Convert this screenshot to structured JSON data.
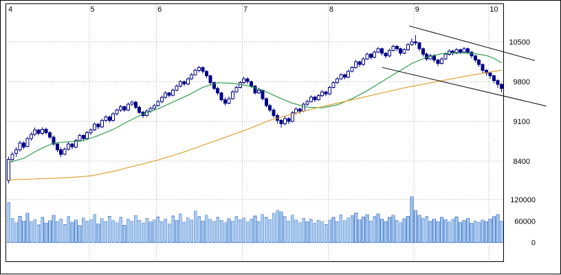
{
  "chart_data": {
    "type": "candlestick",
    "title": "",
    "legend": "none",
    "grid": "dotted",
    "x_axis": {
      "unit": "month",
      "months": [
        {
          "label": "4",
          "index": 0
        },
        {
          "label": "5",
          "index": 22
        },
        {
          "label": "6",
          "index": 40
        },
        {
          "label": "7",
          "index": 63
        },
        {
          "label": "8",
          "index": 86
        },
        {
          "label": "9",
          "index": 109
        },
        {
          "label": "10",
          "index": 129
        }
      ]
    },
    "price_axis": {
      "side": "right",
      "ticks": [
        {
          "value": 10500,
          "label": "10500"
        },
        {
          "value": 9800,
          "label": "9800"
        },
        {
          "value": 9100,
          "label": "9100"
        },
        {
          "value": 8400,
          "label": "8400"
        }
      ]
    },
    "volume_axis": {
      "side": "right",
      "ticks": [
        {
          "value": 120000,
          "label": "120000"
        },
        {
          "value": 60000,
          "label": "60000"
        },
        {
          "value": 0,
          "label": "0"
        }
      ]
    },
    "candles": [
      [
        8060,
        8480,
        8010,
        8430
      ],
      [
        8430,
        8560,
        8380,
        8520
      ],
      [
        8540,
        8650,
        8480,
        8600
      ],
      [
        8600,
        8760,
        8570,
        8720
      ],
      [
        8720,
        8750,
        8610,
        8650
      ],
      [
        8660,
        8830,
        8640,
        8800
      ],
      [
        8800,
        8910,
        8760,
        8870
      ],
      [
        8870,
        8990,
        8840,
        8950
      ],
      [
        8950,
        8970,
        8850,
        8890
      ],
      [
        8890,
        9000,
        8860,
        8960
      ],
      [
        8960,
        8990,
        8870,
        8900
      ],
      [
        8900,
        8930,
        8790,
        8820
      ],
      [
        8820,
        8850,
        8670,
        8700
      ],
      [
        8700,
        8730,
        8560,
        8600
      ],
      [
        8600,
        8640,
        8470,
        8520
      ],
      [
        8520,
        8640,
        8500,
        8610
      ],
      [
        8610,
        8730,
        8590,
        8700
      ],
      [
        8700,
        8720,
        8610,
        8650
      ],
      [
        8650,
        8790,
        8630,
        8760
      ],
      [
        8760,
        8880,
        8740,
        8850
      ],
      [
        8850,
        8870,
        8760,
        8800
      ],
      [
        8800,
        8930,
        8780,
        8900
      ],
      [
        8900,
        8980,
        8860,
        8950
      ],
      [
        8950,
        9080,
        8930,
        9050
      ],
      [
        9050,
        9070,
        8960,
        9000
      ],
      [
        9000,
        9150,
        8980,
        9120
      ],
      [
        9120,
        9210,
        9090,
        9180
      ],
      [
        9180,
        9200,
        9080,
        9120
      ],
      [
        9120,
        9260,
        9100,
        9230
      ],
      [
        9230,
        9330,
        9200,
        9300
      ],
      [
        9300,
        9390,
        9270,
        9360
      ],
      [
        9360,
        9380,
        9260,
        9300
      ],
      [
        9300,
        9430,
        9280,
        9400
      ],
      [
        9400,
        9470,
        9370,
        9440
      ],
      [
        9440,
        9460,
        9320,
        9350
      ],
      [
        9350,
        9380,
        9230,
        9260
      ],
      [
        9260,
        9290,
        9160,
        9200
      ],
      [
        9200,
        9310,
        9180,
        9280
      ],
      [
        9280,
        9360,
        9250,
        9330
      ],
      [
        9330,
        9410,
        9300,
        9380
      ],
      [
        9380,
        9480,
        9360,
        9450
      ],
      [
        9450,
        9550,
        9420,
        9520
      ],
      [
        9520,
        9630,
        9500,
        9600
      ],
      [
        9600,
        9620,
        9520,
        9560
      ],
      [
        9560,
        9680,
        9540,
        9650
      ],
      [
        9650,
        9750,
        9630,
        9720
      ],
      [
        9720,
        9830,
        9700,
        9800
      ],
      [
        9800,
        9820,
        9720,
        9760
      ],
      [
        9760,
        9880,
        9740,
        9850
      ],
      [
        9850,
        9950,
        9830,
        9920
      ],
      [
        9920,
        10030,
        9900,
        10000
      ],
      [
        10000,
        10080,
        9960,
        10050
      ],
      [
        10050,
        10070,
        9940,
        9980
      ],
      [
        9980,
        10000,
        9860,
        9900
      ],
      [
        9900,
        9920,
        9740,
        9780
      ],
      [
        9780,
        9800,
        9650,
        9680
      ],
      [
        9680,
        9710,
        9560,
        9600
      ],
      [
        9600,
        9620,
        9450,
        9480
      ],
      [
        9480,
        9520,
        9380,
        9420
      ],
      [
        9420,
        9540,
        9400,
        9500
      ],
      [
        9500,
        9650,
        9480,
        9620
      ],
      [
        9620,
        9730,
        9600,
        9700
      ],
      [
        9700,
        9810,
        9680,
        9780
      ],
      [
        9780,
        9890,
        9760,
        9850
      ],
      [
        9850,
        9880,
        9760,
        9800
      ],
      [
        9800,
        9820,
        9690,
        9720
      ],
      [
        9720,
        9740,
        9570,
        9600
      ],
      [
        9600,
        9690,
        9580,
        9650
      ],
      [
        9650,
        9660,
        9470,
        9500
      ],
      [
        9500,
        9520,
        9350,
        9380
      ],
      [
        9380,
        9410,
        9260,
        9300
      ],
      [
        9300,
        9330,
        9160,
        9200
      ],
      [
        9200,
        9230,
        9060,
        9120
      ],
      [
        9120,
        9140,
        8990,
        9060
      ],
      [
        9060,
        9190,
        9030,
        9150
      ],
      [
        9150,
        9170,
        9050,
        9100
      ],
      [
        9100,
        9280,
        9080,
        9250
      ],
      [
        9250,
        9350,
        9220,
        9320
      ],
      [
        9320,
        9340,
        9230,
        9280
      ],
      [
        9280,
        9430,
        9260,
        9400
      ],
      [
        9400,
        9480,
        9370,
        9450
      ],
      [
        9450,
        9560,
        9430,
        9530
      ],
      [
        9530,
        9550,
        9440,
        9480
      ],
      [
        9480,
        9580,
        9460,
        9550
      ],
      [
        9550,
        9650,
        9530,
        9620
      ],
      [
        9620,
        9640,
        9540,
        9580
      ],
      [
        9580,
        9730,
        9560,
        9700
      ],
      [
        9700,
        9810,
        9680,
        9780
      ],
      [
        9780,
        9880,
        9760,
        9850
      ],
      [
        9850,
        9950,
        9830,
        9920
      ],
      [
        9920,
        9940,
        9840,
        9880
      ],
      [
        9880,
        10010,
        9860,
        9980
      ],
      [
        9980,
        10080,
        9960,
        10050
      ],
      [
        10050,
        10180,
        10030,
        10150
      ],
      [
        10150,
        10170,
        10060,
        10100
      ],
      [
        10100,
        10230,
        10080,
        10200
      ],
      [
        10200,
        10310,
        10180,
        10280
      ],
      [
        10280,
        10300,
        10190,
        10230
      ],
      [
        10230,
        10350,
        10210,
        10320
      ],
      [
        10320,
        10410,
        10300,
        10380
      ],
      [
        10380,
        10400,
        10260,
        10300
      ],
      [
        10300,
        10320,
        10210,
        10250
      ],
      [
        10250,
        10380,
        10230,
        10350
      ],
      [
        10350,
        10450,
        10330,
        10420
      ],
      [
        10420,
        10440,
        10340,
        10380
      ],
      [
        10380,
        10400,
        10260,
        10300
      ],
      [
        10300,
        10390,
        10280,
        10360
      ],
      [
        10360,
        10480,
        10340,
        10450
      ],
      [
        10450,
        10560,
        10430,
        10500
      ],
      [
        10500,
        10620,
        10440,
        10480
      ],
      [
        10480,
        10500,
        10340,
        10380
      ],
      [
        10380,
        10400,
        10240,
        10280
      ],
      [
        10280,
        10310,
        10160,
        10200
      ],
      [
        10200,
        10290,
        10180,
        10260
      ],
      [
        10260,
        10280,
        10140,
        10180
      ],
      [
        10180,
        10200,
        10070,
        10120
      ],
      [
        10120,
        10230,
        10100,
        10200
      ],
      [
        10200,
        10310,
        10180,
        10280
      ],
      [
        10280,
        10370,
        10260,
        10340
      ],
      [
        10340,
        10360,
        10260,
        10300
      ],
      [
        10300,
        10390,
        10280,
        10360
      ],
      [
        10360,
        10380,
        10280,
        10320
      ],
      [
        10320,
        10410,
        10300,
        10380
      ],
      [
        10380,
        10400,
        10280,
        10320
      ],
      [
        10320,
        10340,
        10210,
        10250
      ],
      [
        10250,
        10270,
        10140,
        10180
      ],
      [
        10180,
        10200,
        10060,
        10100
      ],
      [
        10100,
        10120,
        9950,
        10000
      ],
      [
        10000,
        10020,
        9900,
        9950
      ],
      [
        9950,
        9970,
        9850,
        9900
      ],
      [
        9900,
        9920,
        9770,
        9820
      ],
      [
        9820,
        9840,
        9690,
        9750
      ],
      [
        9750,
        9770,
        9610,
        9680
      ]
    ],
    "volume": [
      112000,
      68000,
      55000,
      73000,
      60000,
      82000,
      57000,
      64000,
      49000,
      70000,
      54000,
      61000,
      76000,
      58000,
      66000,
      50000,
      72000,
      56000,
      63000,
      47000,
      69000,
      59000,
      64000,
      78000,
      52000,
      67000,
      58000,
      73000,
      61000,
      55000,
      70000,
      48000,
      66000,
      59000,
      75000,
      62000,
      54000,
      68000,
      57000,
      63000,
      71000,
      58000,
      66000,
      52000,
      74000,
      62000,
      80000,
      56000,
      69000,
      63000,
      88000,
      72000,
      60000,
      76000,
      65000,
      58000,
      70000,
      62000,
      55000,
      67000,
      59000,
      72000,
      64000,
      69000,
      57000,
      66000,
      74000,
      58000,
      78000,
      70000,
      64000,
      82000,
      90000,
      86000,
      72000,
      60000,
      76000,
      63000,
      55000,
      68000,
      58000,
      66000,
      54000,
      62000,
      57000,
      50000,
      63000,
      70000,
      58000,
      77000,
      61000,
      69000,
      75000,
      83000,
      64000,
      71000,
      78000,
      60000,
      72000,
      80000,
      66000,
      58000,
      70000,
      76000,
      62000,
      55000,
      67000,
      73000,
      128000,
      90000,
      76000,
      68000,
      72000,
      60000,
      66000,
      58000,
      70000,
      64000,
      57000,
      65000,
      71000,
      56000,
      62000,
      68000,
      54000,
      60000,
      56000,
      63000,
      58000,
      66000,
      72000,
      78000,
      60000
    ],
    "overlays": {
      "ma_short": {
        "name": "short-term-moving-average",
        "color": "#2f9e4f",
        "points": [
          [
            0,
            8380
          ],
          [
            4,
            8450
          ],
          [
            8,
            8600
          ],
          [
            12,
            8720
          ],
          [
            16,
            8740
          ],
          [
            20,
            8760
          ],
          [
            24,
            8850
          ],
          [
            28,
            8960
          ],
          [
            32,
            9100
          ],
          [
            36,
            9230
          ],
          [
            40,
            9320
          ],
          [
            44,
            9440
          ],
          [
            48,
            9560
          ],
          [
            52,
            9700
          ],
          [
            56,
            9780
          ],
          [
            60,
            9770
          ],
          [
            64,
            9730
          ],
          [
            68,
            9650
          ],
          [
            72,
            9530
          ],
          [
            76,
            9420
          ],
          [
            80,
            9350
          ],
          [
            84,
            9340
          ],
          [
            88,
            9390
          ],
          [
            92,
            9500
          ],
          [
            96,
            9640
          ],
          [
            100,
            9800
          ],
          [
            104,
            9960
          ],
          [
            108,
            10120
          ],
          [
            112,
            10230
          ],
          [
            116,
            10290
          ],
          [
            120,
            10310
          ],
          [
            124,
            10300
          ],
          [
            128,
            10260
          ],
          [
            130,
            10210
          ],
          [
            132,
            10130
          ]
        ]
      },
      "ma_long": {
        "name": "long-term-moving-average",
        "color": "#dda030",
        "points": [
          [
            0,
            8070
          ],
          [
            8,
            8090
          ],
          [
            16,
            8110
          ],
          [
            22,
            8140
          ],
          [
            28,
            8220
          ],
          [
            34,
            8320
          ],
          [
            40,
            8420
          ],
          [
            46,
            8540
          ],
          [
            52,
            8680
          ],
          [
            58,
            8820
          ],
          [
            64,
            8960
          ],
          [
            70,
            9120
          ],
          [
            76,
            9230
          ],
          [
            82,
            9330
          ],
          [
            88,
            9420
          ],
          [
            94,
            9510
          ],
          [
            100,
            9600
          ],
          [
            106,
            9690
          ],
          [
            110,
            9740
          ],
          [
            114,
            9790
          ],
          [
            118,
            9840
          ],
          [
            122,
            9890
          ],
          [
            126,
            9935
          ],
          [
            129,
            9970
          ],
          [
            132,
            10000
          ]
        ]
      }
    },
    "trend_lines": [
      {
        "x1": 107.3,
        "p1": 10780,
        "x2": 141.0,
        "p2": 10170
      },
      {
        "x1": 100.0,
        "p1": 10050,
        "x2": 144.0,
        "p2": 9370
      }
    ],
    "colors": {
      "candle_up_fill": "#ffffff",
      "candle_down_fill": "#000088",
      "candle_stroke": "#000088",
      "volume_fill": "#aaccee",
      "volume_stroke": "#4477cc",
      "grid": "#aaaaaa",
      "border": "#000000",
      "trend_line": "#000000",
      "label_text": "#000000"
    }
  }
}
